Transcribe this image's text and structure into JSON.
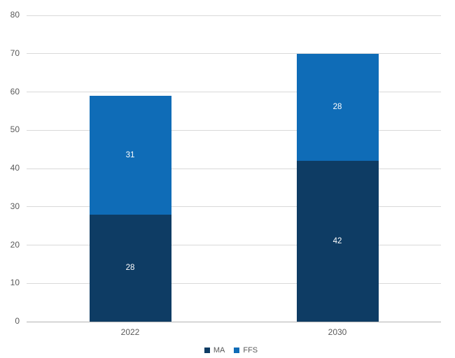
{
  "chart_data": {
    "type": "bar",
    "stacked": true,
    "title": "",
    "xlabel": "",
    "ylabel": "",
    "categories": [
      "2022",
      "2030"
    ],
    "series": [
      {
        "name": "MA",
        "values": [
          28,
          42
        ],
        "color": "#0e3c64"
      },
      {
        "name": "FFS",
        "values": [
          31,
          28
        ],
        "color": "#0f6cb7"
      }
    ],
    "totals": [
      59,
      70
    ],
    "ylim": [
      0,
      80
    ],
    "yticks": [
      0,
      10,
      20,
      30,
      40,
      50,
      60,
      70,
      80
    ],
    "grid": true,
    "data_labels": true,
    "legend_position": "bottom"
  },
  "colors": {
    "background": "#ffffff",
    "grid": "#d9d9d9",
    "axis": "#b3b3b3",
    "tick_text": "#595959",
    "data_label_text": "#ffffff"
  }
}
